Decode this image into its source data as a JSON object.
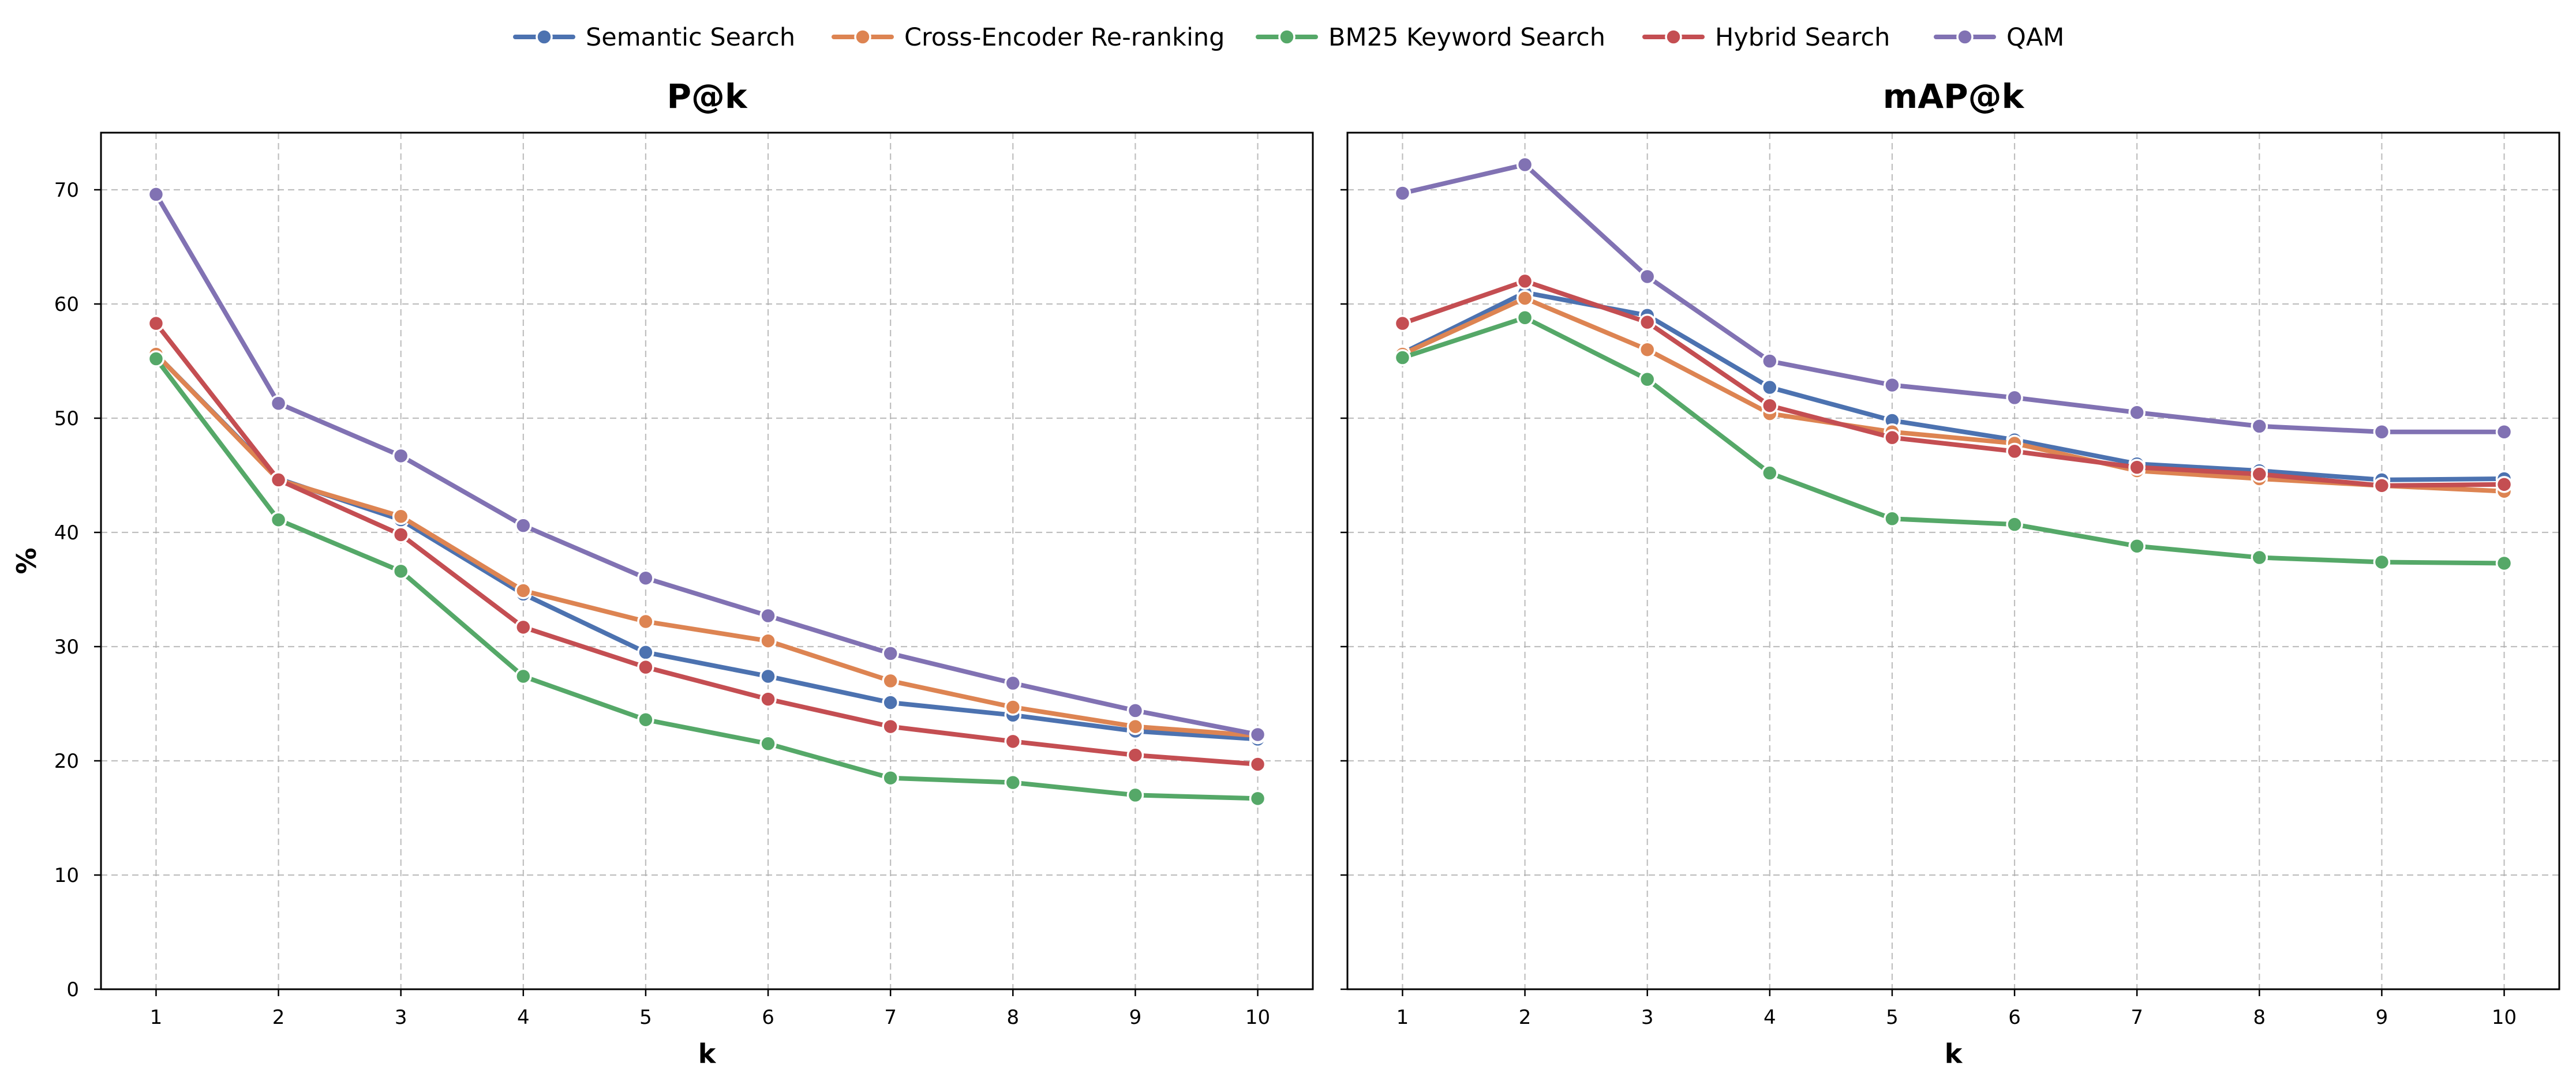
{
  "colors": {
    "Semantic Search": "#4c72b0",
    "Cross-Encoder Re-ranking": "#dd8452",
    "BM25 Keyword Search": "#55a868",
    "Hybrid Search": "#c44e52",
    "QAM": "#8172b3"
  },
  "legend": [
    "Semantic Search",
    "Cross-Encoder Re-ranking",
    "BM25 Keyword Search",
    "Hybrid Search",
    "QAM"
  ],
  "chart_data": [
    {
      "type": "line",
      "title": "P@k",
      "xlabel": "k",
      "ylabel": "%",
      "x": [
        1,
        2,
        3,
        4,
        5,
        6,
        7,
        8,
        9,
        10
      ],
      "ylim": [
        0,
        75
      ],
      "yticks": [
        0,
        10,
        20,
        30,
        40,
        50,
        60,
        70
      ],
      "grid": true,
      "series": [
        {
          "name": "Semantic Search",
          "values": [
            55.6,
            44.7,
            41.1,
            34.6,
            29.5,
            27.4,
            25.1,
            24.0,
            22.6,
            21.9
          ]
        },
        {
          "name": "Cross-Encoder Re-ranking",
          "values": [
            55.6,
            44.6,
            41.4,
            34.9,
            32.2,
            30.5,
            27.0,
            24.7,
            23.0,
            22.2
          ]
        },
        {
          "name": "BM25 Keyword Search",
          "values": [
            55.2,
            41.1,
            36.6,
            27.4,
            23.6,
            21.5,
            18.5,
            18.1,
            17.0,
            16.7
          ]
        },
        {
          "name": "Hybrid Search",
          "values": [
            58.3,
            44.6,
            39.8,
            31.7,
            28.2,
            25.4,
            23.0,
            21.7,
            20.5,
            19.7
          ]
        },
        {
          "name": "QAM",
          "values": [
            69.6,
            51.3,
            46.7,
            40.6,
            36.0,
            32.7,
            29.4,
            26.8,
            24.4,
            22.3
          ]
        }
      ]
    },
    {
      "type": "line",
      "title": "mAP@k",
      "xlabel": "k",
      "ylabel": "",
      "x": [
        1,
        2,
        3,
        4,
        5,
        6,
        7,
        8,
        9,
        10
      ],
      "ylim": [
        0,
        75
      ],
      "yticks": [
        0,
        10,
        20,
        30,
        40,
        50,
        60,
        70
      ],
      "grid": true,
      "series": [
        {
          "name": "Semantic Search",
          "values": [
            55.7,
            61.0,
            59.0,
            52.7,
            49.8,
            48.1,
            46.0,
            45.4,
            44.6,
            44.7
          ]
        },
        {
          "name": "Cross-Encoder Re-ranking",
          "values": [
            55.6,
            60.5,
            56.0,
            50.4,
            48.8,
            47.8,
            45.4,
            44.7,
            44.1,
            43.6
          ]
        },
        {
          "name": "BM25 Keyword Search",
          "values": [
            55.3,
            58.8,
            53.4,
            45.2,
            41.2,
            40.7,
            38.8,
            37.8,
            37.4,
            37.3
          ]
        },
        {
          "name": "Hybrid Search",
          "values": [
            58.3,
            62.0,
            58.4,
            51.1,
            48.3,
            47.1,
            45.7,
            45.1,
            44.1,
            44.2
          ]
        },
        {
          "name": "QAM",
          "values": [
            69.7,
            72.2,
            62.4,
            55.0,
            52.9,
            51.8,
            50.5,
            49.3,
            48.8,
            48.8
          ]
        }
      ]
    }
  ]
}
